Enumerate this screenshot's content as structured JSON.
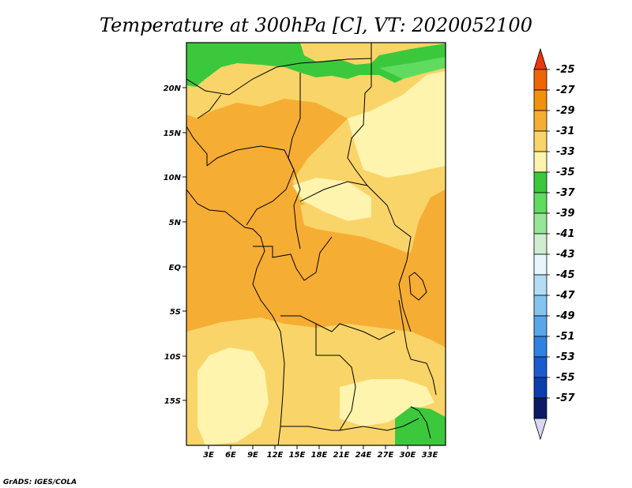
{
  "title": "Temperature at 300hPa [C], VT: 2020052100",
  "credit": "GrADS: IGES/COLA",
  "map": {
    "lon_labels": [
      "3E",
      "6E",
      "9E",
      "12E",
      "15E",
      "18E",
      "21E",
      "24E",
      "27E",
      "30E",
      "33E"
    ],
    "lat_labels": [
      "20N",
      "15N",
      "10N",
      "5N",
      "EQ",
      "5S",
      "10S",
      "15S"
    ]
  },
  "colorbar": {
    "labels": [
      "-25",
      "-27",
      "-29",
      "-31",
      "-33",
      "-35",
      "-37",
      "-39",
      "-41",
      "-43",
      "-45",
      "-47",
      "-49",
      "-51",
      "-53",
      "-55",
      "-57"
    ],
    "colors": [
      "#e8380c",
      "#f06408",
      "#f3900b",
      "#f6ad33",
      "#f9d468",
      "#fef4ad",
      "#3cc83c",
      "#5fdc5f",
      "#96e696",
      "#cfeecf",
      "#e8f6fb",
      "#b4dcf5",
      "#86c4f0",
      "#5aa6ea",
      "#2f82e0",
      "#1a5ccc",
      "#0a3fad",
      "#0d1a66",
      "#d8d8f4"
    ]
  },
  "fields": {
    "orange": "#f6ad33",
    "light_orange": "#f9d468",
    "pale_yellow": "#fef4ad",
    "green": "#3cc83c",
    "light_green": "#5fdc5f"
  }
}
